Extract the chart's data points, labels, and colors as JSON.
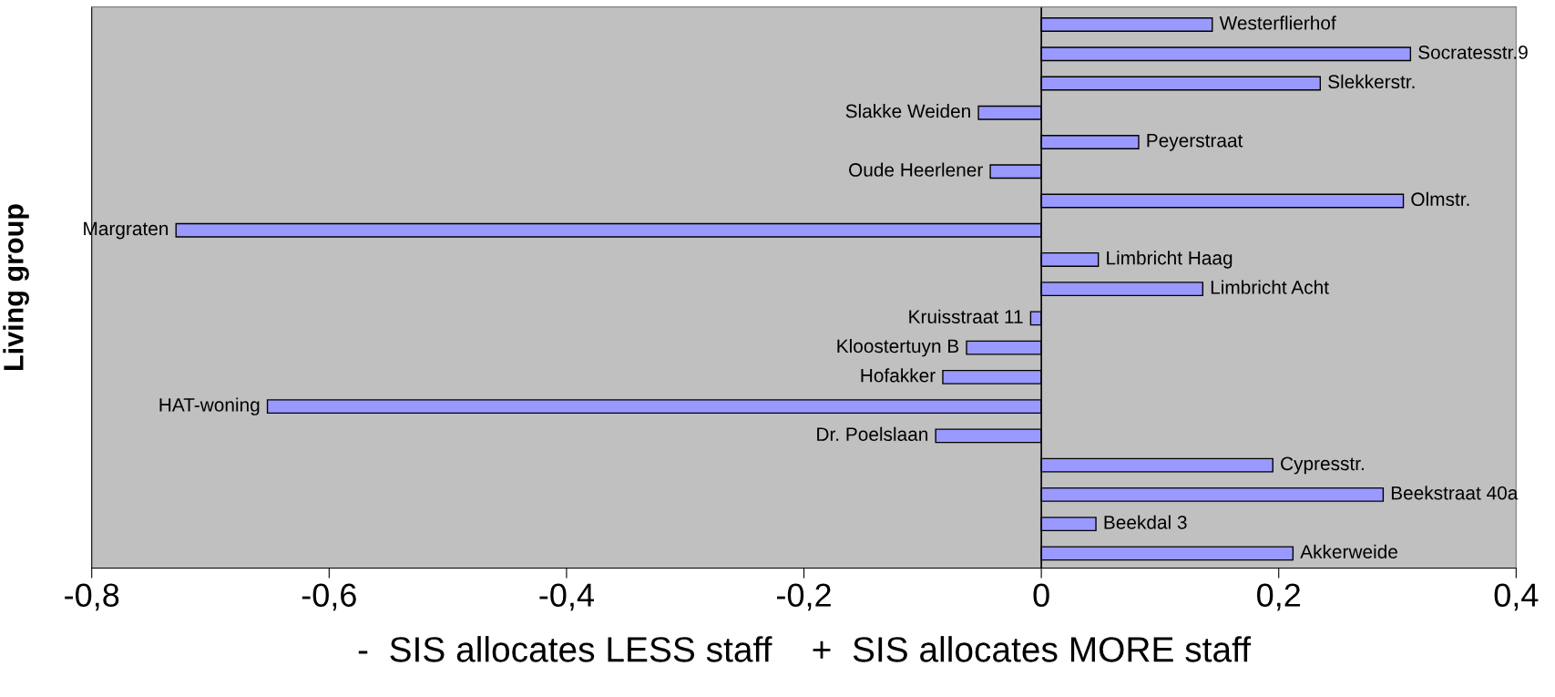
{
  "chart_data": {
    "type": "bar",
    "orientation": "horizontal",
    "xlabel": "-  SIS allocates LESS staff    +  SIS allocates MORE staff",
    "ylabel": "Living group",
    "categories": [
      "Westerflierhof",
      "Socratesstr.9",
      "Slekkerstr.",
      "Slakke Weiden",
      "Peyerstraat",
      "Oude Heerlener",
      "Olmstr.",
      "Margraten",
      "Limbricht Haag",
      "Limbricht Acht",
      "Kruisstraat 11",
      "Kloostertuyn B",
      "Hofakker",
      "HAT-woning",
      "Dr. Poelslaan",
      "Cypresstr.",
      "Beekstraat 40a",
      "Beekdal 3",
      "Akkerweide"
    ],
    "values": [
      0.144,
      0.311,
      0.235,
      -0.053,
      0.082,
      -0.043,
      0.305,
      -0.729,
      0.048,
      0.136,
      -0.009,
      -0.063,
      -0.083,
      -0.652,
      -0.089,
      0.195,
      0.288,
      0.046,
      0.212
    ],
    "color": "#9999ff",
    "xlim": [
      -0.8,
      0.4
    ],
    "xticks": [
      {
        "value": -0.8,
        "label": "-0,8"
      },
      {
        "value": -0.6,
        "label": "-0,6"
      },
      {
        "value": -0.4,
        "label": "-0,4"
      },
      {
        "value": -0.2,
        "label": "-0,2"
      },
      {
        "value": 0,
        "label": "0"
      },
      {
        "value": 0.2,
        "label": "0,2"
      },
      {
        "value": 0.4,
        "label": "0,4"
      }
    ],
    "ref_lines": [
      {
        "axis": "x",
        "value": 0,
        "color": "#000000"
      }
    ],
    "tick_labels": "x",
    "grid": false
  }
}
